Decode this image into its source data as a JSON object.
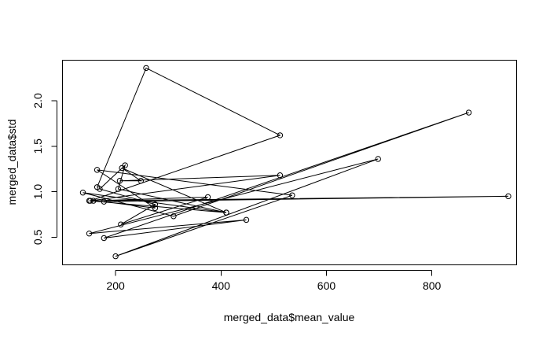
{
  "chart_data": {
    "type": "scatter",
    "title": "",
    "xlabel": "merged_data$mean_value",
    "ylabel": "merged_data$std",
    "xlim": [
      100,
      960
    ],
    "ylim": [
      0.2,
      2.45
    ],
    "x_ticks": [
      200,
      400,
      600,
      800
    ],
    "y_ticks": [
      0.5,
      1.0,
      1.5,
      2.0
    ],
    "x_tick_labels": [
      "200",
      "400",
      "600",
      "800"
    ],
    "y_tick_labels": [
      "0.5",
      "1.0",
      "1.5",
      "2.0"
    ],
    "grid": false,
    "legend": "none",
    "color": "#000000",
    "series": [
      {
        "values": [
          {
            "x": 165,
            "y": 1.05
          },
          {
            "x": 258,
            "y": 2.36
          },
          {
            "x": 512,
            "y": 1.62
          },
          {
            "x": 152,
            "y": 0.9
          },
          {
            "x": 512,
            "y": 1.18
          },
          {
            "x": 208,
            "y": 1.12
          },
          {
            "x": 248,
            "y": 1.12
          },
          {
            "x": 212,
            "y": 1.26
          },
          {
            "x": 410,
            "y": 0.77
          },
          {
            "x": 138,
            "y": 0.99
          },
          {
            "x": 310,
            "y": 0.73
          },
          {
            "x": 870,
            "y": 1.87
          },
          {
            "x": 178,
            "y": 0.49
          },
          {
            "x": 448,
            "y": 0.69
          },
          {
            "x": 150,
            "y": 0.54
          },
          {
            "x": 698,
            "y": 1.36
          },
          {
            "x": 200,
            "y": 0.29
          },
          {
            "x": 535,
            "y": 0.96
          },
          {
            "x": 165,
            "y": 1.24
          },
          {
            "x": 275,
            "y": 0.82
          },
          {
            "x": 178,
            "y": 0.89
          },
          {
            "x": 945,
            "y": 0.95
          },
          {
            "x": 158,
            "y": 0.9
          },
          {
            "x": 375,
            "y": 0.94
          },
          {
            "x": 210,
            "y": 0.64
          },
          {
            "x": 275,
            "y": 0.86
          },
          {
            "x": 170,
            "y": 1.03
          },
          {
            "x": 218,
            "y": 1.29
          },
          {
            "x": 205,
            "y": 1.03
          },
          {
            "x": 410,
            "y": 0.77
          },
          {
            "x": 150,
            "y": 0.9
          }
        ]
      }
    ]
  }
}
